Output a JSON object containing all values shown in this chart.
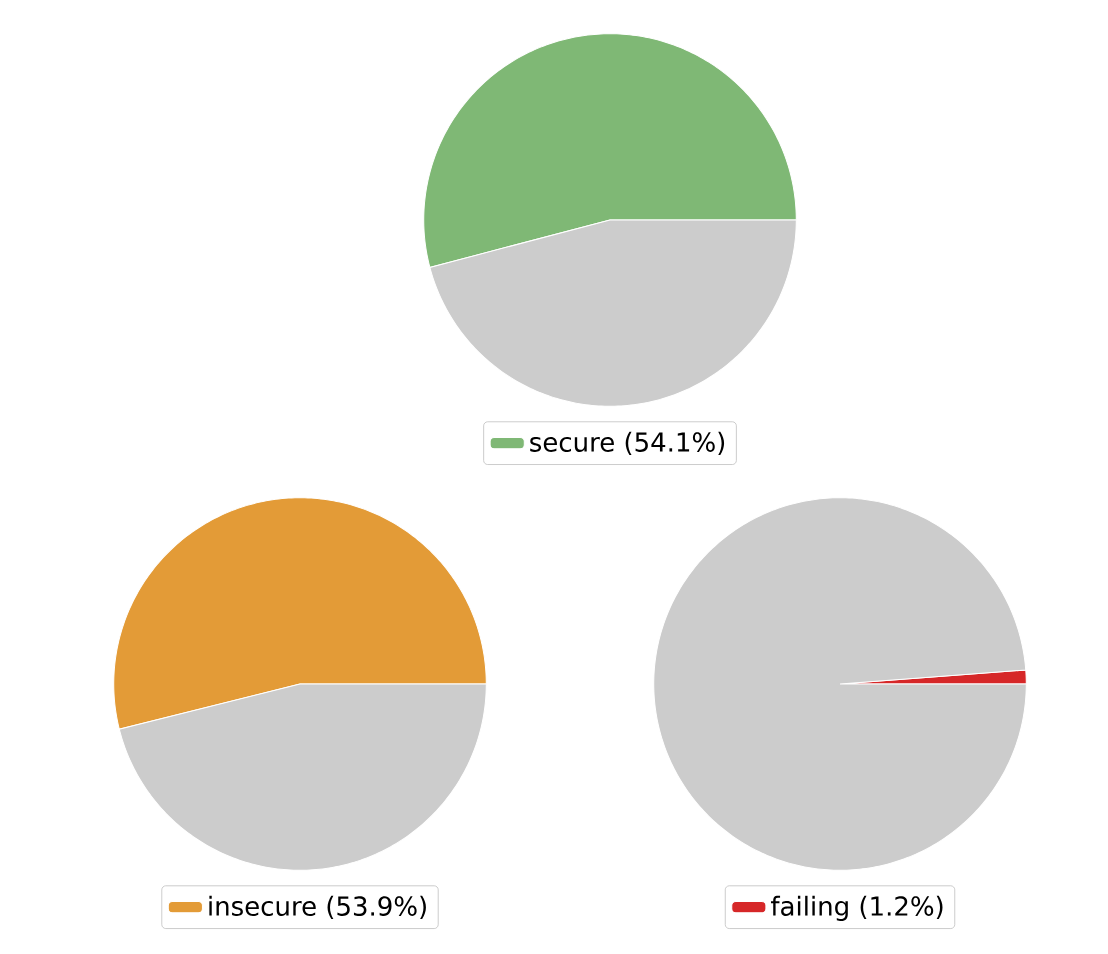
{
  "chart_data": [
    {
      "type": "pie",
      "categories": [
        "secure (54.1%)",
        null
      ],
      "values": [
        54.1,
        45.9
      ],
      "colors": [
        "#7fb875",
        "#cccccc"
      ],
      "legend": "bottom"
    },
    {
      "type": "pie",
      "categories": [
        "insecure (53.9%)",
        null
      ],
      "values": [
        53.9,
        46.1
      ],
      "colors": [
        "#e39b37",
        "#cccccc"
      ],
      "legend": "bottom"
    },
    {
      "type": "pie",
      "categories": [
        "failing (1.2%)",
        null
      ],
      "values": [
        1.2,
        98.8
      ],
      "colors": [
        "#d62728",
        "#cccccc"
      ],
      "legend": "bottom"
    }
  ]
}
